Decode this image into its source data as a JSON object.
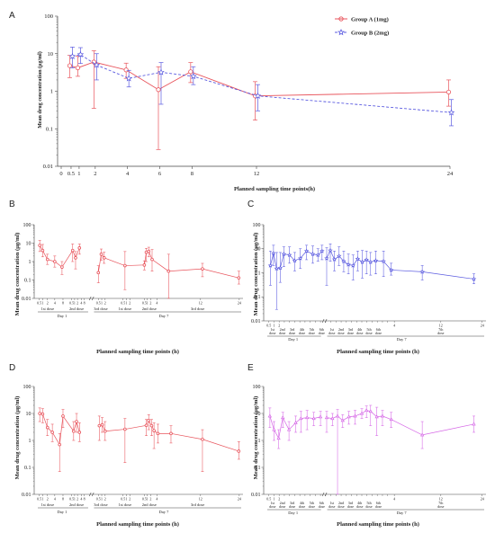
{
  "colors": {
    "red": "#E8545C",
    "blue": "#5B5BE0",
    "pink": "#D565E6",
    "axis": "#444444"
  },
  "panels": {
    "A": {
      "label": "A",
      "xlabel": "Planned sampling time points(h)",
      "ylabel": "Mean drug concentration (μg/ml)"
    },
    "B": {
      "label": "B",
      "xlabel": "Planned sampling time points (h)",
      "ylabel": "Mean drug concentration (μg/ml)"
    },
    "C": {
      "label": "C",
      "xlabel": "Planned sampling time points (h)",
      "ylabel": "Mean drug concentration (μg/ml)"
    },
    "D": {
      "label": "D",
      "xlabel": "Planned sampling time points (h)",
      "ylabel": "Mean drug concentration (μg/ml)"
    },
    "E": {
      "label": "E",
      "xlabel": "Planned sampling time points (h)",
      "ylabel": "Mean drug concentration (μg/ml)"
    }
  },
  "chart_data": [
    {
      "panel": "A",
      "type": "line",
      "yscale": "log",
      "ylim": [
        0.01,
        100
      ],
      "xlim": [
        0,
        24
      ],
      "x_ticks": [
        0,
        0.5,
        1,
        2,
        4,
        6,
        8,
        12,
        24
      ],
      "y_ticks": [
        0.01,
        0.1,
        1,
        10,
        100
      ],
      "y_tick_labels": [
        "0.01",
        "0.1",
        "1",
        "10",
        "100"
      ],
      "legend_position": "top-right",
      "series": [
        {
          "name": "Group A (1mg)",
          "color": "red",
          "marker": "circle",
          "dash": false,
          "x": [
            0.5,
            1,
            2,
            4,
            6,
            8,
            12,
            24
          ],
          "y": [
            4.8,
            4.2,
            6.0,
            3.7,
            1.1,
            3.3,
            0.75,
            0.95
          ],
          "lo": [
            2.3,
            2.5,
            0.35,
            2.2,
            0.028,
            1.7,
            0.17,
            0.4
          ],
          "hi": [
            9.0,
            8.5,
            12,
            5.6,
            4.5,
            5.8,
            1.8,
            2.0
          ]
        },
        {
          "name": "Group B (2mg)",
          "color": "blue",
          "marker": "star",
          "dash": true,
          "x": [
            0.5,
            1,
            2,
            4,
            6,
            8,
            12,
            24
          ],
          "y": [
            8.5,
            9.5,
            5.0,
            2.2,
            3.2,
            2.5,
            0.75,
            0.27
          ],
          "lo": [
            4.2,
            5.5,
            2.0,
            1.3,
            0.45,
            1.5,
            0.3,
            0.12
          ],
          "hi": [
            15,
            14.5,
            10,
            3.6,
            5.8,
            4.5,
            1.5,
            0.6
          ]
        }
      ]
    },
    {
      "panel": "B",
      "type": "line",
      "yscale": "log",
      "ylim": [
        0.01,
        100
      ],
      "y_ticks": [
        0.01,
        0.1,
        1,
        10,
        100
      ],
      "y_tick_labels": [
        "0.01",
        "0.1",
        "1",
        "10",
        "100"
      ],
      "x_tick_labels": [
        "0.5",
        "1",
        "2",
        "4",
        "8",
        "0.5",
        "1",
        "2",
        "4",
        "8",
        "0.5",
        "1",
        "2",
        "0.5",
        "1",
        "2",
        "0.5",
        "1",
        "2",
        "4",
        "12",
        "24"
      ],
      "dose_labels": [
        "1st dose",
        "2nd dose",
        "3rd dose",
        "1st dose",
        "2nd dose",
        "3rd dose"
      ],
      "day_labels": [
        "Day 1",
        "Day 7"
      ],
      "series": [
        {
          "name": "",
          "color": "red",
          "marker": "circle",
          "x": [
            0.4,
            1.0,
            2.0,
            3.5,
            5.0,
            7.2,
            7.8,
            8.6,
            12.5,
            13.1,
            13.7,
            18.0,
            22.0,
            22.4,
            22.9,
            23.6,
            27.0,
            34.0,
            41.5
          ],
          "y": [
            7.5,
            4.0,
            1.3,
            1.0,
            0.5,
            4.0,
            1.6,
            5.5,
            0.25,
            2.5,
            1.6,
            0.6,
            0.65,
            3.2,
            3.6,
            1.3,
            0.3,
            0.4,
            0.13
          ],
          "lo": [
            3.5,
            1.8,
            0.7,
            0.5,
            0.2,
            1.0,
            0.4,
            2.5,
            0.07,
            1.2,
            0.8,
            0.03,
            0.35,
            1.0,
            1.8,
            0.3,
            0.01,
            0.15,
            0.06
          ],
          "hi": [
            14,
            8.5,
            2.5,
            2.0,
            1.0,
            9.0,
            3.5,
            9.0,
            0.6,
            4.8,
            3.2,
            3.5,
            1.1,
            5.2,
            6.0,
            4.5,
            2.5,
            0.8,
            0.3
          ]
        }
      ]
    },
    {
      "panel": "C",
      "type": "line",
      "yscale": "log",
      "ylim": [
        0.01,
        100
      ],
      "y_ticks": [
        0.01,
        0.1,
        1,
        10,
        100
      ],
      "y_tick_labels": [
        "0.01",
        "0.1",
        "1",
        "10",
        "100"
      ],
      "x_tick_labels": [
        "0.5",
        "1",
        "2",
        "4",
        "12",
        "24"
      ],
      "dose_labels": [
        "1st dose",
        "2nd dose",
        "3rd dose",
        "4th dose",
        "5th dose",
        "6th dose",
        "1st dose",
        "2nd dose",
        "3rd dose",
        "4th dose",
        "5th dose",
        "6th dose",
        "7th dose"
      ],
      "day_labels": [
        "Day 1",
        "Day 7"
      ],
      "series": [
        {
          "name": "",
          "color": "blue",
          "marker": "star",
          "x": [
            0.6,
            1.2,
            1.8,
            2.5,
            3.2,
            4.3,
            5.3,
            6.4,
            7.6,
            8.8,
            9.8,
            10.6,
            11.5,
            12.2,
            13.0,
            13.9,
            14.8,
            15.7,
            16.6,
            17.5,
            18.4,
            19.2,
            20.0,
            21.0,
            22.5,
            24.0,
            30.0,
            40.0
          ],
          "y": [
            2.0,
            6.5,
            1.5,
            1.6,
            6.0,
            5.5,
            3.2,
            4.0,
            8.0,
            6.0,
            5.5,
            8.0,
            4.0,
            8.5,
            3.6,
            5.0,
            3.0,
            2.2,
            2.0,
            3.8,
            2.8,
            3.5,
            2.8,
            3.2,
            3.0,
            1.3,
            1.1,
            0.55
          ],
          "lo": [
            0.3,
            2.0,
            0.03,
            0.4,
            1.8,
            2.5,
            1.2,
            1.5,
            3.5,
            2.5,
            3.0,
            3.5,
            0.3,
            3.0,
            1.2,
            2.0,
            1.1,
            0.9,
            0.5,
            1.2,
            0.6,
            0.9,
            0.8,
            0.9,
            0.7,
            0.8,
            0.5,
            0.35
          ],
          "hi": [
            8.0,
            14,
            7.0,
            7.0,
            12,
            12,
            7.0,
            10,
            14,
            13,
            10,
            14,
            11,
            16,
            8.0,
            12,
            8.0,
            6.0,
            5.5,
            8.0,
            8.5,
            8.0,
            7.0,
            8.0,
            8.0,
            2.5,
            2.0,
            0.9
          ]
        }
      ]
    },
    {
      "panel": "D",
      "type": "line",
      "yscale": "log",
      "ylim": [
        0.01,
        100
      ],
      "y_ticks": [
        0.01,
        0.1,
        1,
        10,
        100
      ],
      "y_tick_labels": [
        "0.01",
        "0.1",
        "1",
        "10",
        "100"
      ],
      "x_tick_labels": [
        "0.5",
        "1",
        "2",
        "4",
        "8",
        "0.5",
        "1",
        "2",
        "4",
        "8",
        "0.5",
        "1",
        "2",
        "0.5",
        "1",
        "2",
        "0.5",
        "1",
        "2",
        "4",
        "12",
        "24"
      ],
      "dose_labels": [
        "1st dose",
        "2nd dose",
        "3rd dose",
        "1st dose",
        "2nd dose",
        "3rd dose"
      ],
      "day_labels": [
        "Day 1",
        "Day 7"
      ],
      "series": [
        {
          "name": "",
          "color": "red",
          "marker": "circle",
          "x": [
            0.4,
            1.0,
            2.0,
            3.0,
            4.5,
            5.2,
            7.4,
            8.0,
            8.6,
            12.7,
            13.3,
            13.9,
            18.0,
            22.4,
            22.9,
            23.5,
            24.0,
            24.8,
            27.5,
            34.0,
            41.5
          ],
          "y": [
            10,
            9.5,
            3.0,
            2.0,
            0.7,
            8.0,
            2.2,
            5.0,
            2.0,
            3.5,
            3.8,
            2.2,
            2.6,
            3.6,
            5.5,
            3.5,
            2.3,
            1.8,
            1.8,
            1.1,
            0.4
          ],
          "lo": [
            5.0,
            4.5,
            1.5,
            0.9,
            0.07,
            3.0,
            1.0,
            2.0,
            0.9,
            1.0,
            2.0,
            1.0,
            0.15,
            1.5,
            2.5,
            1.5,
            0.5,
            0.8,
            0.8,
            0.07,
            0.2
          ],
          "hi": [
            16,
            15,
            6.0,
            4.0,
            1.8,
            14,
            5.0,
            10,
            4.5,
            8.0,
            7.0,
            5.0,
            6.5,
            6.0,
            9.0,
            6.0,
            4.5,
            4.0,
            3.5,
            2.5,
            0.9
          ]
        }
      ]
    },
    {
      "panel": "E",
      "type": "line",
      "yscale": "log",
      "ylim": [
        0.01,
        100
      ],
      "y_ticks": [
        0.01,
        0.1,
        1,
        10,
        100
      ],
      "y_tick_labels": [
        "0.01",
        "0.1",
        "1",
        "10",
        "100"
      ],
      "x_tick_labels": [
        "0.5",
        "1",
        "2",
        "4",
        "12",
        "24"
      ],
      "dose_labels": [
        "1st dose",
        "2nd dose",
        "3rd dose",
        "4th dose",
        "5th dose",
        "6th dose",
        "1st dose",
        "2nd dose",
        "3rd dose",
        "4th dose",
        "5th dose",
        "6th dose",
        "7th dose"
      ],
      "day_labels": [
        "Day 1",
        "Day 7"
      ],
      "series": [
        {
          "name": "",
          "color": "pink",
          "marker": "triangle",
          "x": [
            0.5,
            1.3,
            2.2,
            3.0,
            4.2,
            5.5,
            6.5,
            7.7,
            9.0,
            10.3,
            11.5,
            12.6,
            13.6,
            14.6,
            15.8,
            17.0,
            18.3,
            19.2,
            20.0,
            21.2,
            22.3,
            24.0,
            30.0,
            40.0
          ],
          "y": [
            8.0,
            2.5,
            1.2,
            7.0,
            2.5,
            4.5,
            6.5,
            7.0,
            6.5,
            7.5,
            7.0,
            6.5,
            8.0,
            5.5,
            7.5,
            8.0,
            10,
            13,
            12,
            7.5,
            8.0,
            6.0,
            1.6,
            4.0
          ],
          "lo": [
            3.0,
            1.0,
            0.5,
            3.0,
            1.0,
            2.0,
            2.0,
            2.5,
            3.5,
            3.5,
            2.0,
            3.5,
            0.01,
            3.0,
            4.0,
            4.0,
            6.5,
            7.0,
            3.5,
            1.5,
            3.5,
            3.0,
            0.5,
            2.0
          ],
          "hi": [
            16,
            5.0,
            2.5,
            11,
            5.0,
            8.0,
            12,
            13,
            11,
            12,
            12,
            10,
            14,
            9.0,
            12,
            13,
            15,
            19,
            20,
            17,
            13,
            11,
            5.0,
            8.0
          ]
        }
      ]
    }
  ]
}
